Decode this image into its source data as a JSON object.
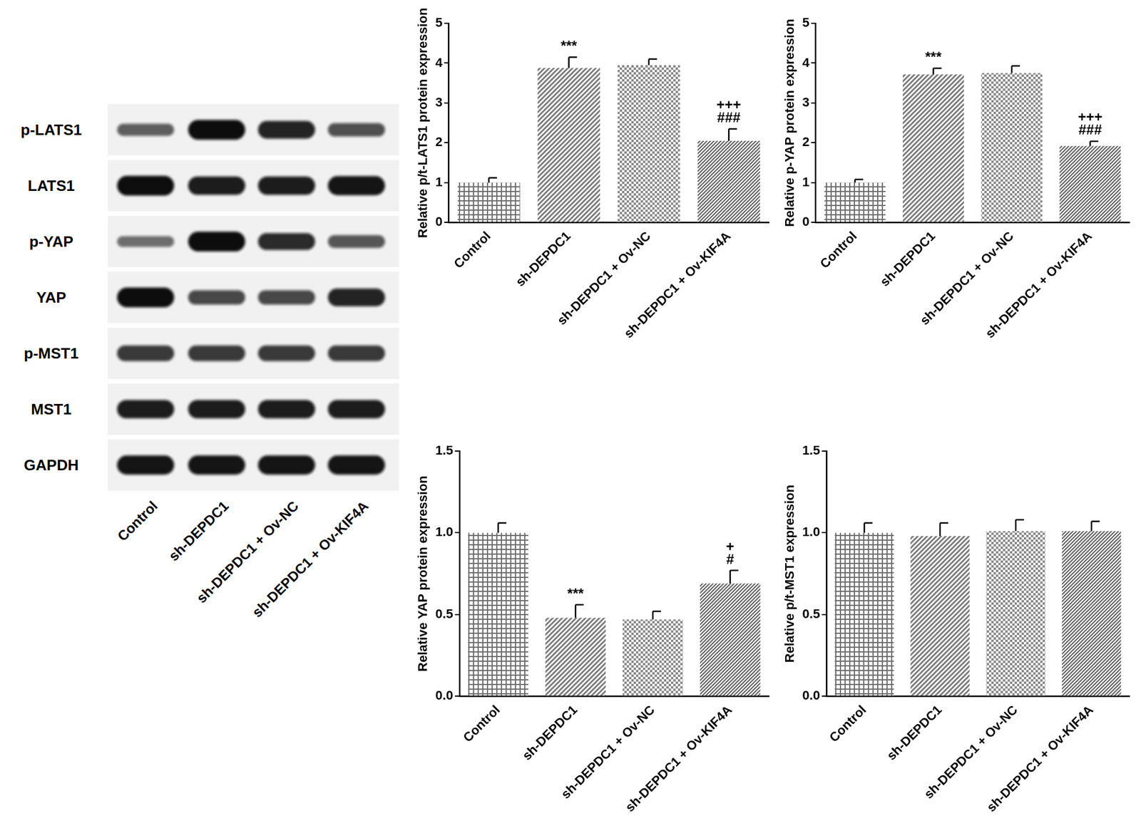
{
  "blot": {
    "rows": [
      {
        "label": "p-LATS1",
        "band_intensity": [
          0.45,
          1.0,
          0.85,
          0.55
        ]
      },
      {
        "label": "LATS1",
        "band_intensity": [
          1.0,
          0.9,
          0.9,
          0.95
        ]
      },
      {
        "label": "p-YAP",
        "band_intensity": [
          0.35,
          1.0,
          0.8,
          0.5
        ]
      },
      {
        "label": "YAP",
        "band_intensity": [
          1.0,
          0.6,
          0.6,
          0.85
        ]
      },
      {
        "label": "p-MST1",
        "band_intensity": [
          0.7,
          0.7,
          0.7,
          0.7
        ]
      },
      {
        "label": "MST1",
        "band_intensity": [
          0.9,
          0.9,
          0.9,
          0.9
        ]
      },
      {
        "label": "GAPDH",
        "band_intensity": [
          0.95,
          0.95,
          0.95,
          0.95
        ]
      }
    ],
    "lanes": [
      "Control",
      "sh-DEPDC1",
      "sh-DEPDC1 + Ov-NC",
      "sh-DEPDC1 + Ov-KIF4A"
    ]
  },
  "chart_data": [
    {
      "type": "bar",
      "y_label": "Relative p/t-LATS1 protein expression",
      "categories": [
        "Control",
        "sh-DEPDC1",
        "sh-DEPDC1 + Ov-NC",
        "sh-DEPDC1 + Ov-KIF4A"
      ],
      "values": [
        1.0,
        3.88,
        3.95,
        2.05
      ],
      "errors": [
        0.12,
        0.27,
        0.15,
        0.3
      ],
      "colors": [
        "#6e6e6e",
        "#7a7a7a",
        "#8a8a8a",
        "#5e5e5e"
      ],
      "ylim": [
        0,
        5
      ],
      "yticks": [
        0,
        1,
        2,
        3,
        4,
        5
      ],
      "grid": false,
      "annotations": [
        {
          "category": "sh-DEPDC1",
          "text": [
            "***"
          ]
        },
        {
          "category": "sh-DEPDC1 + Ov-KIF4A",
          "text": [
            "+++",
            "###"
          ]
        }
      ]
    },
    {
      "type": "bar",
      "y_label": "Relative p-YAP protein expression",
      "categories": [
        "Control",
        "sh-DEPDC1",
        "sh-DEPDC1 + Ov-NC",
        "sh-DEPDC1 + Ov-KIF4A"
      ],
      "values": [
        1.0,
        3.72,
        3.75,
        1.92
      ],
      "errors": [
        0.08,
        0.15,
        0.18,
        0.12
      ],
      "colors": [
        "#6e6e6e",
        "#7a7a7a",
        "#8a8a8a",
        "#5e5e5e"
      ],
      "ylim": [
        0,
        5
      ],
      "yticks": [
        0,
        1,
        2,
        3,
        4,
        5
      ],
      "grid": false,
      "annotations": [
        {
          "category": "sh-DEPDC1",
          "text": [
            "***"
          ]
        },
        {
          "category": "sh-DEPDC1 + Ov-KIF4A",
          "text": [
            "+++",
            "###"
          ]
        }
      ]
    },
    {
      "type": "bar",
      "y_label": "Relative YAP protein expression",
      "categories": [
        "Control",
        "sh-DEPDC1",
        "sh-DEPDC1 + Ov-NC",
        "sh-DEPDC1 + Ov-KIF4A"
      ],
      "values": [
        1.0,
        0.48,
        0.47,
        0.69
      ],
      "errors": [
        0.06,
        0.08,
        0.05,
        0.08
      ],
      "colors": [
        "#6e6e6e",
        "#7a7a7a",
        "#8a8a8a",
        "#5e5e5e"
      ],
      "ylim": [
        0,
        1.5
      ],
      "yticks": [
        {
          "value": 0,
          "label": "0.0"
        },
        0.5,
        {
          "value": 1,
          "label": "1.0"
        },
        1.5
      ],
      "grid": false,
      "annotations": [
        {
          "category": "sh-DEPDC1",
          "text": [
            "***"
          ]
        },
        {
          "category": "sh-DEPDC1 + Ov-KIF4A",
          "text": [
            "+",
            "#"
          ]
        }
      ]
    },
    {
      "type": "bar",
      "y_label": "Relative p/t-MST1 expression",
      "categories": [
        "Control",
        "sh-DEPDC1",
        "sh-DEPDC1 + Ov-NC",
        "sh-DEPDC1 + Ov-KIF4A"
      ],
      "values": [
        1.0,
        0.98,
        1.01,
        1.01
      ],
      "errors": [
        0.06,
        0.08,
        0.07,
        0.06
      ],
      "colors": [
        "#6e6e6e",
        "#7a7a7a",
        "#8a8a8a",
        "#5e5e5e"
      ],
      "ylim": [
        0,
        1.5
      ],
      "yticks": [
        {
          "value": 0,
          "label": "0.0"
        },
        0.5,
        {
          "value": 1,
          "label": "1.0"
        },
        1.5
      ],
      "grid": false
    }
  ]
}
